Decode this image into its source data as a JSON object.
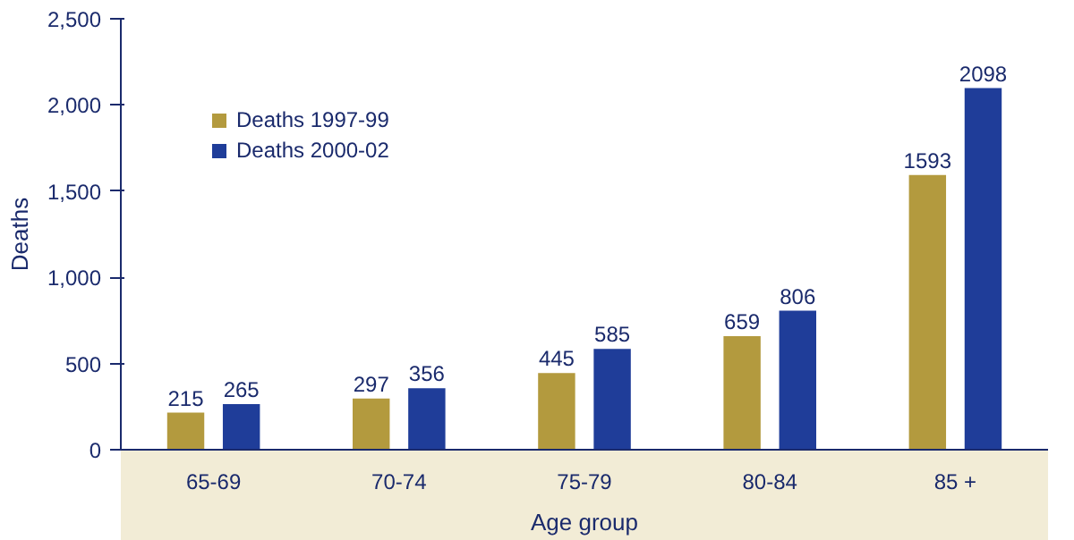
{
  "chart_data": {
    "type": "bar",
    "xlabel": "Age group",
    "ylabel": "Deaths",
    "categories": [
      "65-69",
      "70-74",
      "75-79",
      "80-84",
      "85 +"
    ],
    "series": [
      {
        "name": "Deaths 1997-99",
        "color": "#b39a3e",
        "values": [
          215,
          297,
          445,
          659,
          1593
        ]
      },
      {
        "name": "Deaths 2000-02",
        "color": "#1f3d99",
        "values": [
          265,
          356,
          585,
          806,
          2098
        ]
      }
    ],
    "ylim": [
      0,
      2500
    ],
    "yticks": [
      0,
      500,
      {
        "value": 1000,
        "label": "1,000"
      },
      {
        "value": 1500,
        "label": "1,500"
      },
      {
        "value": 2000,
        "label": "2,000"
      },
      {
        "value": 2500,
        "label": "2,500"
      }
    ],
    "data_labels": true,
    "grid": false,
    "legend": "top left"
  }
}
